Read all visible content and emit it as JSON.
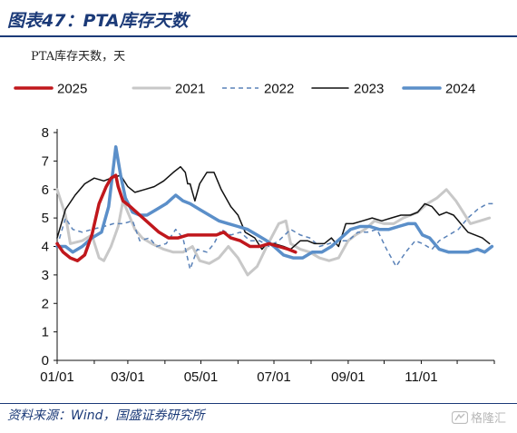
{
  "figure": {
    "title": "图表47：PTA库存天数",
    "unit_label": "PTA库存天数，天",
    "source": "资料来源：Wind，国盛证券研究所",
    "watermark": "格隆汇"
  },
  "chart_data": {
    "type": "line",
    "ylim": [
      0,
      8
    ],
    "yticks": [
      0,
      1,
      2,
      3,
      4,
      5,
      6,
      7,
      8
    ],
    "xlim": [
      1,
      366
    ],
    "x_unit": "day of year",
    "xticks": [
      {
        "label": "01/01",
        "day": 1
      },
      {
        "label": "03/01",
        "day": 60
      },
      {
        "label": "05/01",
        "day": 121
      },
      {
        "label": "07/01",
        "day": 182
      },
      {
        "label": "09/01",
        "day": 244
      },
      {
        "label": "11/01",
        "day": 305
      }
    ],
    "grid": false,
    "legend": {
      "placement": "top",
      "order": [
        "2025",
        "2021",
        "2022",
        "2023",
        "2024"
      ]
    },
    "series": [
      {
        "name": "2021",
        "color": "#c8c8c8",
        "style": "solid",
        "width": 3,
        "points": [
          [
            1,
            6.0
          ],
          [
            8,
            5.1
          ],
          [
            12,
            4.1
          ],
          [
            22,
            4.2
          ],
          [
            30,
            4.4
          ],
          [
            36,
            3.6
          ],
          [
            40,
            3.5
          ],
          [
            46,
            4.0
          ],
          [
            52,
            4.7
          ],
          [
            56,
            5.6
          ],
          [
            60,
            5.2
          ],
          [
            66,
            4.6
          ],
          [
            72,
            4.3
          ],
          [
            80,
            4.1
          ],
          [
            90,
            3.9
          ],
          [
            98,
            3.8
          ],
          [
            106,
            3.8
          ],
          [
            114,
            4.0
          ],
          [
            120,
            3.5
          ],
          [
            128,
            3.4
          ],
          [
            136,
            3.6
          ],
          [
            144,
            4.0
          ],
          [
            152,
            3.6
          ],
          [
            160,
            3.0
          ],
          [
            168,
            3.3
          ],
          [
            176,
            4.0
          ],
          [
            186,
            4.8
          ],
          [
            192,
            4.9
          ],
          [
            196,
            4.1
          ],
          [
            204,
            3.9
          ],
          [
            212,
            3.8
          ],
          [
            220,
            3.6
          ],
          [
            228,
            3.5
          ],
          [
            236,
            3.6
          ],
          [
            244,
            4.2
          ],
          [
            250,
            4.4
          ],
          [
            258,
            4.6
          ],
          [
            266,
            4.9
          ],
          [
            274,
            4.8
          ],
          [
            282,
            4.8
          ],
          [
            290,
            5.0
          ],
          [
            296,
            5.1
          ],
          [
            302,
            5.2
          ],
          [
            310,
            5.5
          ],
          [
            318,
            5.7
          ],
          [
            326,
            6.0
          ],
          [
            334,
            5.6
          ],
          [
            340,
            5.2
          ],
          [
            346,
            4.8
          ],
          [
            354,
            4.9
          ],
          [
            362,
            5.0
          ]
        ]
      },
      {
        "name": "2022",
        "color": "#5a82b8",
        "style": "dashed",
        "width": 1.5,
        "points": [
          [
            1,
            4.0
          ],
          [
            8,
            5.0
          ],
          [
            14,
            4.6
          ],
          [
            22,
            4.5
          ],
          [
            30,
            4.6
          ],
          [
            40,
            4.7
          ],
          [
            48,
            4.8
          ],
          [
            56,
            4.8
          ],
          [
            64,
            4.9
          ],
          [
            70,
            4.2
          ],
          [
            78,
            4.3
          ],
          [
            84,
            4.0
          ],
          [
            92,
            4.1
          ],
          [
            100,
            4.6
          ],
          [
            106,
            4.3
          ],
          [
            112,
            3.2
          ],
          [
            118,
            3.9
          ],
          [
            126,
            3.8
          ],
          [
            132,
            4.1
          ],
          [
            138,
            4.6
          ],
          [
            146,
            4.4
          ],
          [
            154,
            4.5
          ],
          [
            162,
            4.2
          ],
          [
            170,
            4.2
          ],
          [
            178,
            4.0
          ],
          [
            186,
            4.2
          ],
          [
            196,
            4.6
          ],
          [
            204,
            4.4
          ],
          [
            212,
            4.3
          ],
          [
            220,
            4.0
          ],
          [
            228,
            4.1
          ],
          [
            236,
            4.2
          ],
          [
            244,
            4.2
          ],
          [
            252,
            4.5
          ],
          [
            260,
            4.5
          ],
          [
            268,
            4.6
          ],
          [
            276,
            3.9
          ],
          [
            284,
            3.3
          ],
          [
            292,
            3.8
          ],
          [
            300,
            4.2
          ],
          [
            306,
            4.1
          ],
          [
            314,
            3.9
          ],
          [
            320,
            4.2
          ],
          [
            328,
            4.4
          ],
          [
            336,
            4.6
          ],
          [
            344,
            5.0
          ],
          [
            352,
            5.3
          ],
          [
            360,
            5.5
          ],
          [
            366,
            5.5
          ]
        ]
      },
      {
        "name": "2023",
        "color": "#111111",
        "style": "solid",
        "width": 1.5,
        "points": [
          [
            1,
            4.3
          ],
          [
            8,
            5.3
          ],
          [
            16,
            5.8
          ],
          [
            24,
            6.2
          ],
          [
            32,
            6.4
          ],
          [
            40,
            6.3
          ],
          [
            46,
            6.4
          ],
          [
            54,
            6.5
          ],
          [
            60,
            6.1
          ],
          [
            66,
            5.9
          ],
          [
            74,
            6.0
          ],
          [
            82,
            6.1
          ],
          [
            90,
            6.3
          ],
          [
            98,
            6.6
          ],
          [
            104,
            6.8
          ],
          [
            108,
            6.6
          ],
          [
            110,
            6.2
          ],
          [
            112,
            6.2
          ],
          [
            114,
            5.9
          ],
          [
            116,
            5.6
          ],
          [
            120,
            6.2
          ],
          [
            126,
            6.6
          ],
          [
            132,
            6.6
          ],
          [
            138,
            6.0
          ],
          [
            146,
            5.4
          ],
          [
            152,
            5.1
          ],
          [
            158,
            4.5
          ],
          [
            166,
            4.3
          ],
          [
            172,
            3.9
          ],
          [
            176,
            4.1
          ],
          [
            182,
            4.1
          ],
          [
            190,
            4.0
          ],
          [
            196,
            3.9
          ],
          [
            204,
            4.2
          ],
          [
            210,
            4.2
          ],
          [
            216,
            4.1
          ],
          [
            224,
            4.1
          ],
          [
            230,
            4.3
          ],
          [
            236,
            4.0
          ],
          [
            242,
            4.8
          ],
          [
            248,
            4.8
          ],
          [
            256,
            4.9
          ],
          [
            264,
            5.0
          ],
          [
            272,
            4.9
          ],
          [
            280,
            5.0
          ],
          [
            288,
            5.1
          ],
          [
            296,
            5.1
          ],
          [
            302,
            5.2
          ],
          [
            308,
            5.5
          ],
          [
            314,
            5.4
          ],
          [
            320,
            5.1
          ],
          [
            326,
            5.2
          ],
          [
            332,
            5.1
          ],
          [
            338,
            4.8
          ],
          [
            344,
            4.5
          ],
          [
            350,
            4.4
          ],
          [
            356,
            4.3
          ],
          [
            362,
            4.1
          ]
        ]
      },
      {
        "name": "2024",
        "color": "#5b8fc9",
        "style": "solid",
        "width": 3.5,
        "points": [
          [
            1,
            4.0
          ],
          [
            8,
            4.0
          ],
          [
            14,
            3.8
          ],
          [
            22,
            4.0
          ],
          [
            30,
            4.3
          ],
          [
            38,
            4.5
          ],
          [
            44,
            5.4
          ],
          [
            50,
            7.5
          ],
          [
            54,
            6.5
          ],
          [
            58,
            5.7
          ],
          [
            64,
            5.2
          ],
          [
            70,
            5.1
          ],
          [
            76,
            5.1
          ],
          [
            84,
            5.3
          ],
          [
            92,
            5.5
          ],
          [
            100,
            5.8
          ],
          [
            106,
            5.6
          ],
          [
            112,
            5.5
          ],
          [
            120,
            5.3
          ],
          [
            128,
            5.1
          ],
          [
            136,
            4.9
          ],
          [
            144,
            4.8
          ],
          [
            152,
            4.7
          ],
          [
            160,
            4.6
          ],
          [
            168,
            4.4
          ],
          [
            176,
            4.2
          ],
          [
            182,
            4.0
          ],
          [
            190,
            3.7
          ],
          [
            198,
            3.6
          ],
          [
            206,
            3.6
          ],
          [
            214,
            3.8
          ],
          [
            222,
            3.8
          ],
          [
            230,
            4.0
          ],
          [
            238,
            4.3
          ],
          [
            246,
            4.6
          ],
          [
            254,
            4.7
          ],
          [
            262,
            4.7
          ],
          [
            270,
            4.6
          ],
          [
            278,
            4.6
          ],
          [
            286,
            4.7
          ],
          [
            294,
            4.8
          ],
          [
            300,
            4.8
          ],
          [
            306,
            4.4
          ],
          [
            312,
            4.3
          ],
          [
            320,
            3.9
          ],
          [
            328,
            3.8
          ],
          [
            336,
            3.8
          ],
          [
            344,
            3.8
          ],
          [
            352,
            3.9
          ],
          [
            358,
            3.8
          ],
          [
            364,
            4.0
          ]
        ]
      },
      {
        "name": "2025",
        "color": "#c0171c",
        "style": "solid",
        "width": 3.5,
        "points": [
          [
            1,
            4.1
          ],
          [
            6,
            3.8
          ],
          [
            12,
            3.6
          ],
          [
            18,
            3.5
          ],
          [
            24,
            3.7
          ],
          [
            30,
            4.4
          ],
          [
            36,
            5.5
          ],
          [
            42,
            6.1
          ],
          [
            46,
            6.4
          ],
          [
            50,
            6.5
          ],
          [
            52,
            6.1
          ],
          [
            56,
            5.6
          ],
          [
            62,
            5.4
          ],
          [
            70,
            5.1
          ],
          [
            78,
            4.8
          ],
          [
            86,
            4.5
          ],
          [
            94,
            4.3
          ],
          [
            102,
            4.3
          ],
          [
            110,
            4.4
          ],
          [
            118,
            4.4
          ],
          [
            126,
            4.4
          ],
          [
            134,
            4.4
          ],
          [
            140,
            4.5
          ],
          [
            146,
            4.3
          ],
          [
            154,
            4.2
          ],
          [
            162,
            4.0
          ],
          [
            170,
            4.0
          ],
          [
            178,
            4.1
          ],
          [
            186,
            4.0
          ],
          [
            194,
            3.9
          ],
          [
            200,
            3.8
          ]
        ]
      }
    ]
  }
}
